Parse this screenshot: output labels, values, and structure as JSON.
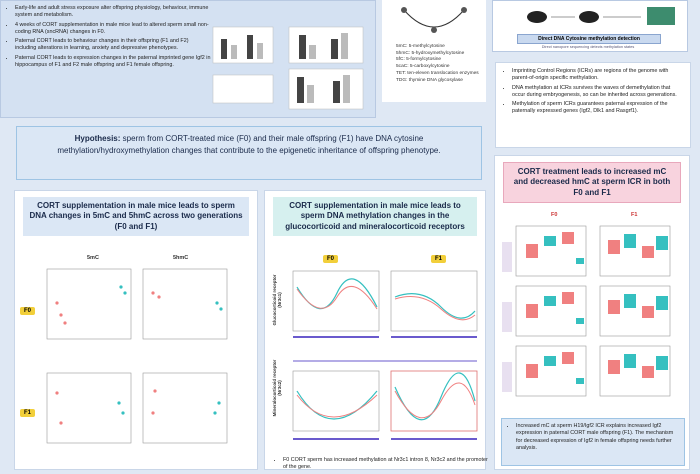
{
  "background": {
    "bullets": [
      "Early-life and adult stress exposure alter offspring physiology, behaviour, immune system and metabolism.",
      "4 weeks of CORT supplementation in male mice lead to altered sperm small non-coding RNA (sncRNA) changes in F0.",
      "Paternal CORT leads to behaviour changes in their offspring (F1 and F2) including alterations in learning, anxiety and depressive phenotypes.",
      "Paternal CORT leads to expression changes in the paternal imprinted gene Igf2 in hippocampus of F1 and F2 male offspring and F1 female offspring."
    ]
  },
  "abbreviations": [
    "5mC: 5-methylcytosine",
    "5hmC: 5-hydroxymethylcytosine",
    "5fC: 5-formylcytosine",
    "5caC: 5-carboxylcytosine",
    "TET: ten-eleven translocation enzymes",
    "TDG: thymine DNA glycosylase"
  ],
  "method": {
    "label": "Direct DNA Cytosine methylation detection",
    "caption": "Direct nanopore sequencing detects methylation states"
  },
  "icr": {
    "bullets": [
      "Imprinting Control Regions (ICRs) are regions of the genome with parent-of-origin specific methylation.",
      "DNA methylation at ICRs survives the waves of demethylation that occur during embryogenesis, so can be inherited across generations.",
      "Methylation of sperm ICRs guarantees paternal expression of the paternally expressed genes (Igf2, Dlk1 and Rasgrf1)."
    ]
  },
  "hypothesis": {
    "label": "Hypothesis:",
    "text": "sperm from CORT-treated mice (F0) and their male offspring (F1) have DNA cytosine methylation/hydroxymethylation changes that contribute to the epigenetic inheritance of offspring phenotype."
  },
  "panels": [
    {
      "title": "CORT supplementation in male mice leads to sperm DNA changes in 5mC and 5hmC across two generations (F0 and F1)",
      "columns": [
        "5mC",
        "5hmC"
      ],
      "rows": [
        "F0",
        "F1"
      ]
    },
    {
      "title": "CORT supplementation in male mice leads to sperm DNA methylation changes in the glucocorticoid and mineralocorticoid receptors",
      "columns": [
        "F0",
        "F1"
      ],
      "rows": [
        "Glucocorticoid receptor (Nr3c1)",
        "Mineralocorticoid receptor (Nr3c2)"
      ],
      "note": "F0 CORT sperm has increased methylation at Nr3c1 intron 8, Nr3c2 and the promoter of the gene."
    },
    {
      "title": "CORT treatment leads to increased mC and decreased hmC at sperm ICR in both F0 and F1",
      "columns": [
        "F0",
        "F1"
      ],
      "note": "Increased mC at sperm H19/Igf2 ICR explains increased Igf2 expression in paternal CORT male offspring (F1). The mechanism for decreased expression of Igf2 in female offspring needs further analysis."
    }
  ]
}
